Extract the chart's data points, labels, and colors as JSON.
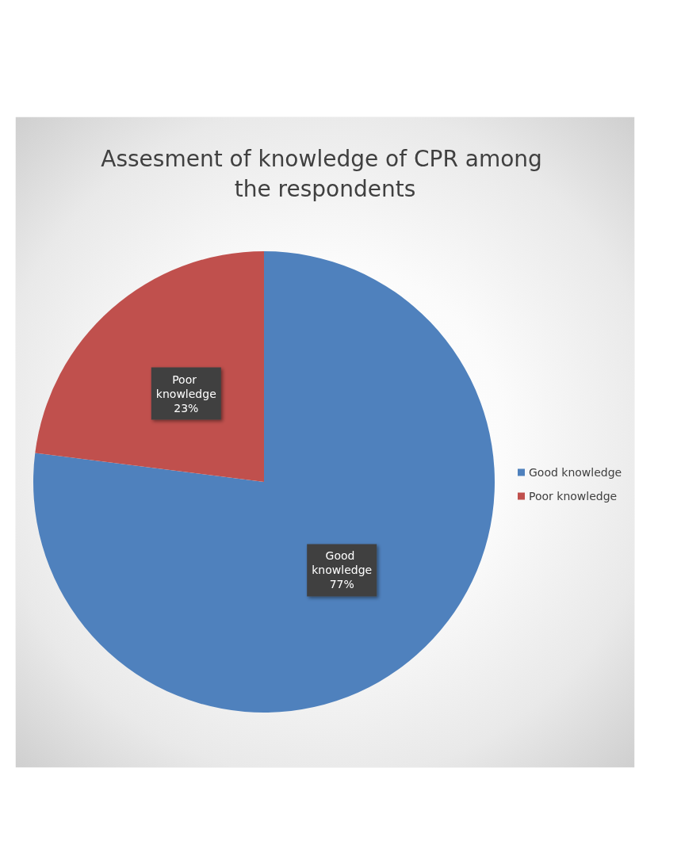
{
  "chart_data": {
    "type": "pie",
    "title": "Assesment of knowledge of CPR among the respondents",
    "categories": [
      "Good knowledge",
      "Poor knowledge"
    ],
    "values": [
      77,
      23
    ],
    "colors": [
      "#4f81bd",
      "#c0504d"
    ],
    "value_labels": [
      "77%",
      "23%"
    ],
    "legend": "right"
  }
}
